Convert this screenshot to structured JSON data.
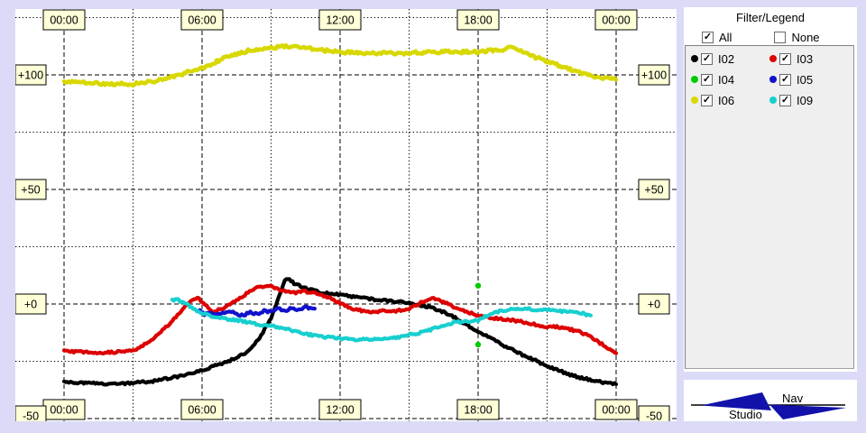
{
  "page": {
    "background": "#DBDBF7",
    "chart_background": "#FFFFFF"
  },
  "chart": {
    "label_box_fill": "#FFFFD8",
    "label_box_border": "#000000",
    "grid_color": "#000000"
  },
  "chart_data": {
    "type": "line",
    "title": "",
    "x_axis": {
      "unit": "time-of-day",
      "tick_hours": [
        0,
        6,
        12,
        18,
        24
      ],
      "tick_labels": [
        "00:00",
        "06:00",
        "12:00",
        "18:00",
        "00:00"
      ],
      "minor_tick_hours": [
        3,
        9,
        15,
        21
      ],
      "labels_shown": "top-and-bottom"
    },
    "y_axis": {
      "tick_values": [
        100,
        50,
        0,
        -50
      ],
      "tick_labels": [
        "+100",
        "+50",
        "+0",
        "-50"
      ],
      "minor_tick_values": [
        125,
        75,
        25,
        -25
      ],
      "range": [
        -51,
        129
      ],
      "labels_shown": "left-and-right"
    },
    "grid": "dashed-major, dotted-minor",
    "legend_position": "right-panel",
    "series": [
      {
        "name": "I06",
        "color": "#D8D800",
        "style": "noisy-line",
        "points": [
          [
            0,
            97
          ],
          [
            1,
            96.5
          ],
          [
            2,
            96
          ],
          [
            3,
            96
          ],
          [
            4,
            97.5
          ],
          [
            5,
            100
          ],
          [
            6,
            103
          ],
          [
            7,
            107.5
          ],
          [
            8,
            110.5
          ],
          [
            9,
            112
          ],
          [
            10,
            112.5
          ],
          [
            10.5,
            112
          ],
          [
            11,
            111
          ],
          [
            12,
            110
          ],
          [
            13,
            109.5
          ],
          [
            14,
            109.5
          ],
          [
            15,
            109.5
          ],
          [
            16,
            110
          ],
          [
            17,
            110
          ],
          [
            18,
            110
          ],
          [
            19,
            111
          ],
          [
            19.5,
            112
          ],
          [
            20,
            109.5
          ],
          [
            21,
            106
          ],
          [
            22,
            102.5
          ],
          [
            23,
            99
          ],
          [
            24,
            98
          ]
        ]
      },
      {
        "name": "I02",
        "color": "#000000",
        "style": "noisy-line",
        "points": [
          [
            0,
            -34
          ],
          [
            1,
            -34.5
          ],
          [
            2,
            -35
          ],
          [
            3,
            -34.5
          ],
          [
            4,
            -33.5
          ],
          [
            5,
            -31.5
          ],
          [
            6,
            -29
          ],
          [
            7,
            -25.5
          ],
          [
            7.5,
            -23.5
          ],
          [
            8,
            -20.5
          ],
          [
            8.5,
            -15
          ],
          [
            9,
            -6
          ],
          [
            9.3,
            2
          ],
          [
            9.6,
            10.5
          ],
          [
            9.8,
            11
          ],
          [
            10,
            9
          ],
          [
            10.5,
            7
          ],
          [
            11,
            5.5
          ],
          [
            11.5,
            4.5
          ],
          [
            12,
            4
          ],
          [
            13,
            2.5
          ],
          [
            14,
            1.5
          ],
          [
            15,
            0.5
          ],
          [
            16,
            -1.5
          ],
          [
            16.5,
            -3.5
          ],
          [
            17,
            -6
          ],
          [
            18,
            -12
          ],
          [
            19,
            -17.5
          ],
          [
            20,
            -22.5
          ],
          [
            21,
            -27
          ],
          [
            22,
            -31
          ],
          [
            23,
            -33.5
          ],
          [
            24,
            -35
          ]
        ]
      },
      {
        "name": "I03",
        "color": "#DD0000",
        "style": "noisy-line",
        "points": [
          [
            0,
            -20.5
          ],
          [
            0.7,
            -21
          ],
          [
            1.5,
            -21.5
          ],
          [
            2.2,
            -21
          ],
          [
            3,
            -20.5
          ],
          [
            3.5,
            -17.5
          ],
          [
            4,
            -14
          ],
          [
            4.5,
            -9.5
          ],
          [
            5,
            -4
          ],
          [
            5.5,
            1.5
          ],
          [
            5.8,
            3
          ],
          [
            6.2,
            -1
          ],
          [
            6.5,
            -3.5
          ],
          [
            7,
            -1.5
          ],
          [
            7.5,
            1.5
          ],
          [
            8,
            5
          ],
          [
            8.5,
            7.5
          ],
          [
            8.9,
            8
          ],
          [
            9.5,
            6
          ],
          [
            10,
            5
          ],
          [
            10.5,
            5.5
          ],
          [
            11,
            4.5
          ],
          [
            11.5,
            3
          ],
          [
            12,
            0.5
          ],
          [
            12.5,
            -2
          ],
          [
            13,
            -3
          ],
          [
            13.5,
            -3.5
          ],
          [
            14,
            -3
          ],
          [
            14.5,
            -3
          ],
          [
            15,
            -2
          ],
          [
            15.5,
            0.5
          ],
          [
            16,
            2.5
          ],
          [
            16.5,
            1
          ],
          [
            17,
            -1.5
          ],
          [
            17.5,
            -3.5
          ],
          [
            18,
            -5
          ],
          [
            18.5,
            -6
          ],
          [
            19,
            -6.5
          ],
          [
            19.5,
            -7
          ],
          [
            20,
            -8
          ],
          [
            20.5,
            -9
          ],
          [
            21,
            -10
          ],
          [
            21.5,
            -10
          ],
          [
            22,
            -11
          ],
          [
            22.5,
            -12.5
          ],
          [
            23,
            -15
          ],
          [
            23.3,
            -17
          ],
          [
            23.6,
            -19
          ],
          [
            24,
            -21.5
          ]
        ]
      },
      {
        "name": "I05",
        "color": "#1111CC",
        "style": "noisy-line",
        "points": [
          [
            5.9,
            -3
          ],
          [
            6.1,
            -4.5
          ],
          [
            6.3,
            -3.5
          ],
          [
            6.6,
            -5
          ],
          [
            6.9,
            -4
          ],
          [
            7.2,
            -3
          ],
          [
            7.5,
            -4.5
          ],
          [
            7.8,
            -5
          ],
          [
            8.1,
            -3.5
          ],
          [
            8.4,
            -4.5
          ],
          [
            8.7,
            -3
          ],
          [
            9,
            -3.5
          ],
          [
            9.3,
            -2
          ],
          [
            9.6,
            -3
          ],
          [
            9.9,
            -1.5
          ],
          [
            10.2,
            -2.5
          ],
          [
            10.5,
            -1.5
          ],
          [
            10.9,
            -2
          ]
        ]
      },
      {
        "name": "I09",
        "color": "#17CFCF",
        "style": "noisy-line",
        "points": [
          [
            4.7,
            1.5
          ],
          [
            4.9,
            2
          ],
          [
            5.1,
            1
          ],
          [
            5.4,
            -0.5
          ],
          [
            5.7,
            -2.5
          ],
          [
            6,
            -4
          ],
          [
            6.5,
            -5.5
          ],
          [
            7,
            -6.5
          ],
          [
            7.5,
            -7
          ],
          [
            8,
            -8
          ],
          [
            8.5,
            -9
          ],
          [
            9,
            -9.5
          ],
          [
            9.5,
            -10.5
          ],
          [
            10,
            -12
          ],
          [
            10.5,
            -13
          ],
          [
            11,
            -14
          ],
          [
            11.5,
            -14.5
          ],
          [
            12,
            -15
          ],
          [
            12.5,
            -15.5
          ],
          [
            13,
            -15.5
          ],
          [
            13.5,
            -15.5
          ],
          [
            14,
            -15
          ],
          [
            14.5,
            -14.5
          ],
          [
            15,
            -13.5
          ],
          [
            15.5,
            -12.5
          ],
          [
            16,
            -11
          ],
          [
            16.5,
            -9.5
          ],
          [
            17,
            -8
          ],
          [
            17.5,
            -7.5
          ],
          [
            18,
            -7
          ],
          [
            18.3,
            -5.5
          ],
          [
            18.6,
            -4
          ],
          [
            19,
            -3
          ],
          [
            19.5,
            -2
          ],
          [
            20,
            -2
          ],
          [
            20.5,
            -2.5
          ],
          [
            21,
            -2.5
          ],
          [
            21.5,
            -3
          ],
          [
            22,
            -3.5
          ],
          [
            22.5,
            -4
          ],
          [
            22.9,
            -5
          ]
        ]
      },
      {
        "name": "I04",
        "color": "#00CC00",
        "style": "dots",
        "points": [
          [
            18,
            8
          ],
          [
            18,
            -17.7
          ]
        ]
      }
    ]
  },
  "legend": {
    "title": "Filter/Legend",
    "all_label": "All",
    "all_checked": true,
    "none_label": "None",
    "none_checked": false,
    "items": [
      {
        "id": "I02",
        "color": "#000000",
        "checked": true
      },
      {
        "id": "I03",
        "color": "#DD0000",
        "checked": true
      },
      {
        "id": "I04",
        "color": "#00CC00",
        "checked": true
      },
      {
        "id": "I05",
        "color": "#1111CC",
        "checked": true
      },
      {
        "id": "I06",
        "color": "#D8D800",
        "checked": true
      },
      {
        "id": "I09",
        "color": "#17CFCF",
        "checked": true
      }
    ]
  },
  "logo": {
    "nav": "Nav",
    "studio": "Studio",
    "color": "#1212AA"
  }
}
